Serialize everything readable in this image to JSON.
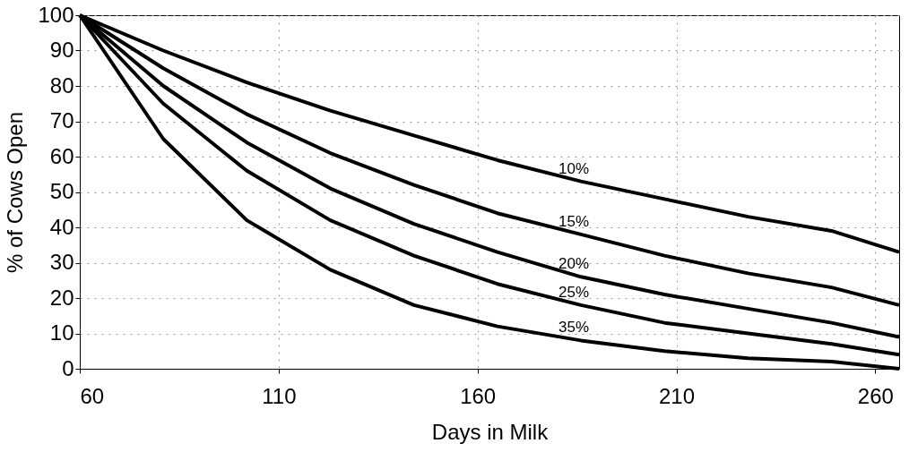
{
  "chart_data": {
    "type": "line",
    "xlabel": "Days in Milk",
    "ylabel": "% of Cows Open",
    "x": [
      60,
      81,
      102,
      123,
      144,
      165,
      186,
      207,
      228,
      249,
      266
    ],
    "series": [
      {
        "name": "10%",
        "color": "#000000",
        "values": [
          100,
          90,
          81,
          73,
          66,
          59,
          53,
          48,
          43,
          39,
          33
        ]
      },
      {
        "name": "15%",
        "color": "#000000",
        "values": [
          100,
          85,
          72,
          61,
          52,
          44,
          38,
          32,
          27,
          23,
          18
        ]
      },
      {
        "name": "20%",
        "color": "#000000",
        "values": [
          100,
          80,
          64,
          51,
          41,
          33,
          26,
          21,
          17,
          13,
          9
        ]
      },
      {
        "name": "25%",
        "color": "#000000",
        "values": [
          100,
          75,
          56,
          42,
          32,
          24,
          18,
          13,
          10,
          7,
          4
        ]
      },
      {
        "name": "35%",
        "color": "#000000",
        "values": [
          100,
          65,
          42,
          28,
          18,
          12,
          8,
          5,
          3,
          2,
          0
        ]
      }
    ],
    "xlim": [
      60,
      266
    ],
    "xticks": [
      60,
      110,
      160,
      210,
      260
    ],
    "ylim": [
      0,
      100
    ],
    "yticks": [
      0,
      10,
      20,
      30,
      40,
      50,
      60,
      70,
      80,
      90,
      100
    ],
    "grid": true,
    "marker": "none",
    "line_style": "solid",
    "legend": false
  }
}
